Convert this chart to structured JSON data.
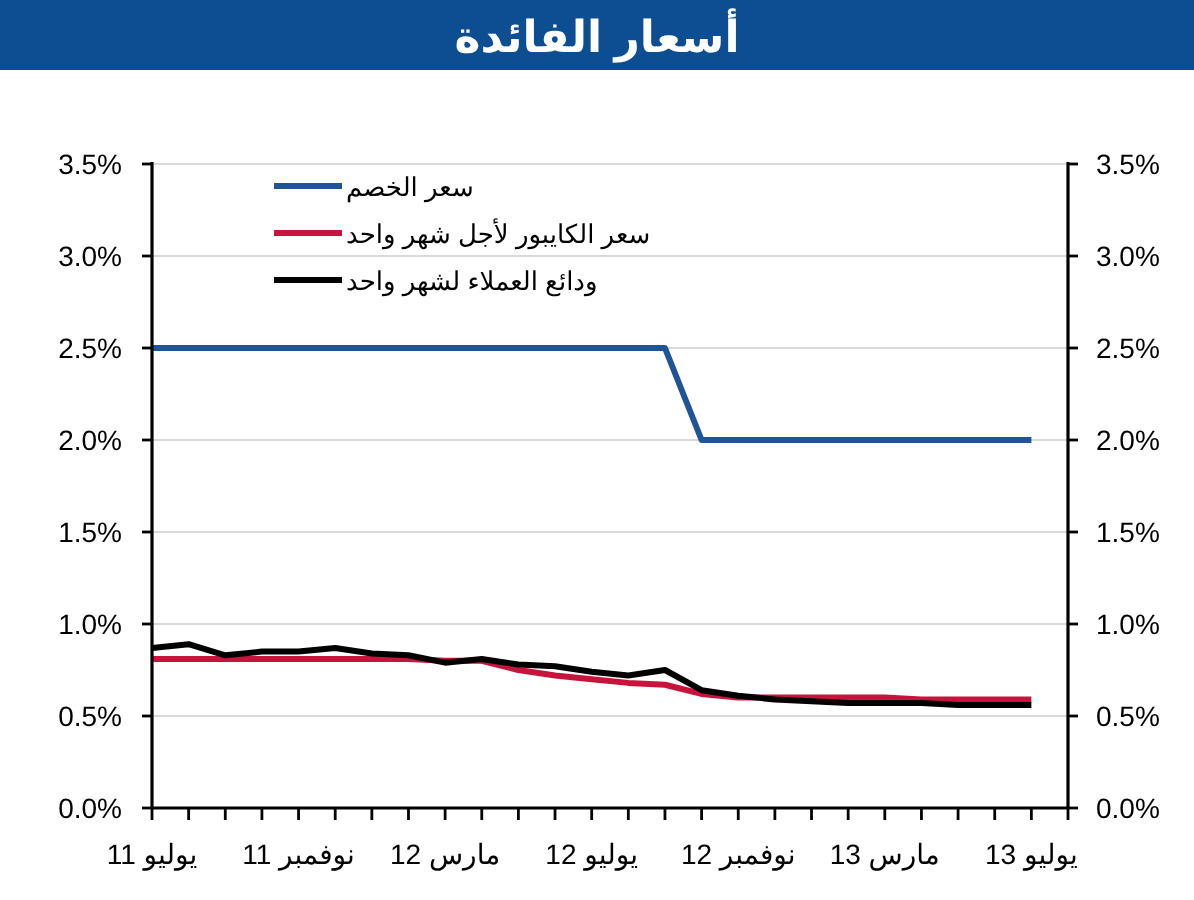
{
  "chart_data": {
    "type": "line",
    "title": "أسعار الفائدة",
    "x": [
      "2011-07",
      "2011-08",
      "2011-09",
      "2011-10",
      "2011-11",
      "2011-12",
      "2012-01",
      "2012-02",
      "2012-03",
      "2012-04",
      "2012-05",
      "2012-06",
      "2012-07",
      "2012-08",
      "2012-09",
      "2012-10",
      "2012-11",
      "2012-12",
      "2013-01",
      "2013-02",
      "2013-03",
      "2013-04",
      "2013-05",
      "2013-06",
      "2013-07"
    ],
    "xlim": [
      "2011-07",
      "2013-08"
    ],
    "xticks": [
      {
        "value": "2011-07",
        "label": "يوليو 11"
      },
      {
        "value": "2011-08",
        "label": null
      },
      {
        "value": "2011-09",
        "label": null
      },
      {
        "value": "2011-10",
        "label": null
      },
      {
        "value": "2011-11",
        "label": "نوفمبر 11"
      },
      {
        "value": "2011-12",
        "label": null
      },
      {
        "value": "2012-01",
        "label": null
      },
      {
        "value": "2012-02",
        "label": null
      },
      {
        "value": "2012-03",
        "label": "مارس 12"
      },
      {
        "value": "2012-04",
        "label": null
      },
      {
        "value": "2012-05",
        "label": null
      },
      {
        "value": "2012-06",
        "label": null
      },
      {
        "value": "2012-07",
        "label": "يوليو 12"
      },
      {
        "value": "2012-08",
        "label": null
      },
      {
        "value": "2012-09",
        "label": null
      },
      {
        "value": "2012-10",
        "label": null
      },
      {
        "value": "2012-11",
        "label": "نوفمبر 12"
      },
      {
        "value": "2012-12",
        "label": null
      },
      {
        "value": "2013-01",
        "label": null
      },
      {
        "value": "2013-02",
        "label": null
      },
      {
        "value": "2013-03",
        "label": "مارس 13"
      },
      {
        "value": "2013-04",
        "label": null
      },
      {
        "value": "2013-05",
        "label": null
      },
      {
        "value": "2013-06",
        "label": null
      },
      {
        "value": "2013-07",
        "label": "يوليو 13"
      },
      {
        "value": "2013-08",
        "label": null
      }
    ],
    "ylim": [
      0,
      3.5
    ],
    "yticks": [
      {
        "value": 0,
        "label": "0.0%"
      },
      {
        "value": 0.5,
        "label": "0.5%"
      },
      {
        "value": 1,
        "label": "1.0%"
      },
      {
        "value": 1.5,
        "label": "1.5%"
      },
      {
        "value": 2,
        "label": "2.0%"
      },
      {
        "value": 2.5,
        "label": "2.5%"
      },
      {
        "value": 3,
        "label": "3.0%"
      },
      {
        "value": 3.5,
        "label": "3.5%"
      }
    ],
    "y2lim": [
      0,
      3.5
    ],
    "y2ticks": [
      {
        "value": 0,
        "label": "0.0%"
      },
      {
        "value": 0.5,
        "label": "0.5%"
      },
      {
        "value": 1,
        "label": "1.0%"
      },
      {
        "value": 1.5,
        "label": "1.5%"
      },
      {
        "value": 2,
        "label": "2.0%"
      },
      {
        "value": 2.5,
        "label": "2.5%"
      },
      {
        "value": 3,
        "label": "3.0%"
      },
      {
        "value": 3.5,
        "label": "3.5%"
      }
    ],
    "grid": "y",
    "legend": "top left",
    "series": [
      {
        "name": "سعر الخصم",
        "color": "#1f5597",
        "values": [
          2.5,
          2.5,
          2.5,
          2.5,
          2.5,
          2.5,
          2.5,
          2.5,
          2.5,
          2.5,
          2.5,
          2.5,
          2.5,
          2.5,
          2.5,
          2.0,
          2.0,
          2.0,
          2.0,
          2.0,
          2.0,
          2.0,
          2.0,
          2.0,
          2.0
        ]
      },
      {
        "name": "سعر الكايبور لأجل شهر واحد",
        "color": "#c8143c",
        "values": [
          0.81,
          0.81,
          0.81,
          0.81,
          0.81,
          0.81,
          0.81,
          0.81,
          0.8,
          0.8,
          0.75,
          0.72,
          0.7,
          0.68,
          0.67,
          0.62,
          0.6,
          0.6,
          0.6,
          0.6,
          0.6,
          0.59,
          0.59,
          0.59,
          0.59
        ]
      },
      {
        "name": "ودائع العملاء لشهر واحد",
        "color": "#000000",
        "values": [
          0.87,
          0.89,
          0.83,
          0.85,
          0.85,
          0.87,
          0.84,
          0.83,
          0.79,
          0.81,
          0.78,
          0.77,
          0.74,
          0.72,
          0.75,
          0.64,
          0.61,
          0.59,
          0.58,
          0.57,
          0.57,
          0.57,
          0.56,
          0.56,
          0.56
        ]
      }
    ]
  }
}
